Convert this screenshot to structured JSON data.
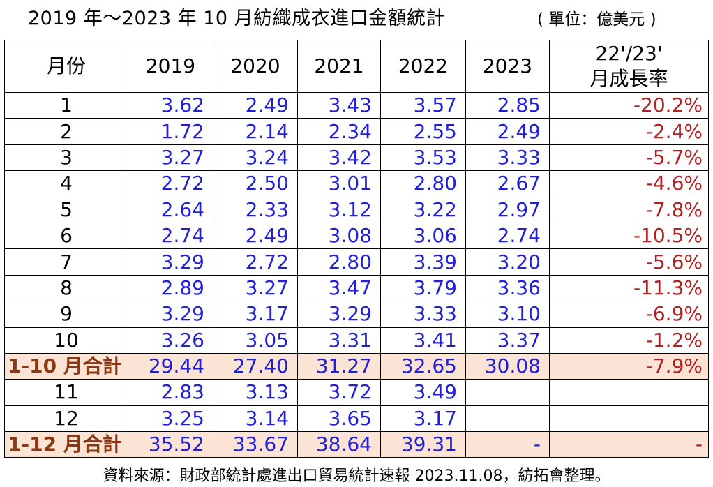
{
  "title": "2019 年～2023 年 10 月紡織成衣進口金額統計",
  "unit": "( 單位：億美元 )",
  "headers": {
    "month": "月份",
    "y2019": "2019",
    "y2020": "2020",
    "y2021": "2021",
    "y2022": "2022",
    "y2023": "2023",
    "growth_line1": "22'/23'",
    "growth_line2": "月成長率"
  },
  "rows": [
    {
      "month": "1",
      "v2019": "3.62",
      "v2020": "2.49",
      "v2021": "3.43",
      "v2022": "3.57",
      "v2023": "2.85",
      "growth": "-20.2%"
    },
    {
      "month": "2",
      "v2019": "1.72",
      "v2020": "2.14",
      "v2021": "2.34",
      "v2022": "2.55",
      "v2023": "2.49",
      "growth": "-2.4%"
    },
    {
      "month": "3",
      "v2019": "3.27",
      "v2020": "3.24",
      "v2021": "3.42",
      "v2022": "3.53",
      "v2023": "3.33",
      "growth": "-5.7%"
    },
    {
      "month": "4",
      "v2019": "2.72",
      "v2020": "2.50",
      "v2021": "3.01",
      "v2022": "2.80",
      "v2023": "2.67",
      "growth": "-4.6%"
    },
    {
      "month": "5",
      "v2019": "2.64",
      "v2020": "2.33",
      "v2021": "3.12",
      "v2022": "3.22",
      "v2023": "2.97",
      "growth": "-7.8%"
    },
    {
      "month": "6",
      "v2019": "2.74",
      "v2020": "2.49",
      "v2021": "3.08",
      "v2022": "3.06",
      "v2023": "2.74",
      "growth": "-10.5%"
    },
    {
      "month": "7",
      "v2019": "3.29",
      "v2020": "2.72",
      "v2021": "2.80",
      "v2022": "3.39",
      "v2023": "3.20",
      "growth": "-5.6%"
    },
    {
      "month": "8",
      "v2019": "2.89",
      "v2020": "3.27",
      "v2021": "3.47",
      "v2022": "3.79",
      "v2023": "3.36",
      "growth": "-11.3%"
    },
    {
      "month": "9",
      "v2019": "3.29",
      "v2020": "3.17",
      "v2021": "3.29",
      "v2022": "3.33",
      "v2023": "3.10",
      "growth": "-6.9%"
    },
    {
      "month": "10",
      "v2019": "3.26",
      "v2020": "3.05",
      "v2021": "3.31",
      "v2022": "3.41",
      "v2023": "3.37",
      "growth": "-1.2%"
    },
    {
      "month": "1-10 月合計",
      "v2019": "29.44",
      "v2020": "27.40",
      "v2021": "31.27",
      "v2022": "32.65",
      "v2023": "30.08",
      "growth": "-7.9%",
      "summary": true
    },
    {
      "month": "11",
      "v2019": "2.83",
      "v2020": "3.13",
      "v2021": "3.72",
      "v2022": "3.49",
      "v2023": "",
      "growth": ""
    },
    {
      "month": "12",
      "v2019": "3.25",
      "v2020": "3.14",
      "v2021": "3.65",
      "v2022": "3.17",
      "v2023": "",
      "growth": ""
    },
    {
      "month": "1-12 月合計",
      "v2019": "35.52",
      "v2020": "33.67",
      "v2021": "38.64",
      "v2022": "39.31",
      "v2023": "-",
      "growth": "-",
      "summary": true
    }
  ],
  "source": "資料來源：財政部統計處進出口貿易統計速報 2023.11.08，紡拓會整理。",
  "colors": {
    "value_text": "#1f1fd9",
    "growth_text": "#b22020",
    "summary_fill": "#fbe3d6",
    "summary_label": "#8a3a12"
  }
}
